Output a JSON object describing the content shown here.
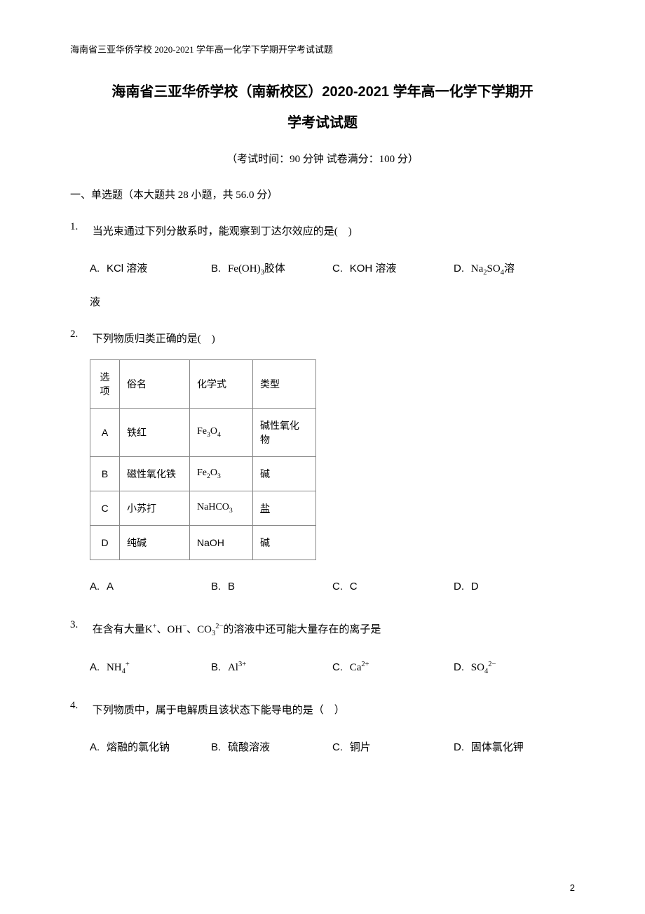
{
  "header_line": "海南省三亚华侨学校 2020-2021 学年高一化学下学期开学考试试题",
  "title_line1": "海南省三亚华侨学校（南新校区）2020-2021 学年高一化学下学期开",
  "title_line2": "学考试试题",
  "exam_info": "（考试时间：90 分钟  试卷满分：100 分）",
  "section1": "一、单选题（本大题共 28 小题，共 56.0 分）",
  "page_number": "2",
  "q1": {
    "num": "1.",
    "text": "当光束通过下列分散系时，能观察到丁达尔效应的是( )",
    "A_label": "A.",
    "A_text": "KCl 溶液",
    "B_label": "B.",
    "B_text_pre": "Fe(OH)",
    "B_sub": "3",
    "B_text_post": "胶体",
    "C_label": "C.",
    "C_text": "KOH 溶液",
    "D_label": "D.",
    "D_text_pre": "Na",
    "D_sub1": "2",
    "D_mid": "SO",
    "D_sub2": "4",
    "D_text_post": "溶",
    "extra": "液"
  },
  "q2": {
    "num": "2.",
    "text": "下列物质归类正确的是( )",
    "table": {
      "h0": "选项",
      "h1": "俗名",
      "h2": "化学式",
      "h3": "类型",
      "rA0": "A",
      "rA1": "铁红",
      "rA2_pre": "Fe",
      "rA2_s1": "3",
      "rA2_mid": "O",
      "rA2_s2": "4",
      "rA3": "碱性氧化物",
      "rB0": "B",
      "rB1": "磁性氧化铁",
      "rB2_pre": "Fe",
      "rB2_s1": "2",
      "rB2_mid": "O",
      "rB2_s2": "3",
      "rB3": "碱",
      "rC0": "C",
      "rC1": "小苏打",
      "rC2_pre": "NaHCO",
      "rC2_s1": "3",
      "rC3": "盐",
      "rD0": "D",
      "rD1": "纯碱",
      "rD2": "NaOH",
      "rD3": "碱"
    },
    "A_label": "A.",
    "A_text": "A",
    "B_label": "B.",
    "B_text": "B",
    "C_label": "C.",
    "C_text": "C",
    "D_label": "D.",
    "D_text": "D"
  },
  "q3": {
    "num": "3.",
    "text_pre": "在含有大量K",
    "sup1": "+",
    "mid1": "、OH",
    "sup2": "−",
    "mid2": "、CO",
    "sub1": "3",
    "sup3": "2−",
    "text_post": "的溶液中还可能大量存在的离子是",
    "A_label": "A.",
    "A_pre": "NH",
    "A_sub": "4",
    "A_sup": "+",
    "B_label": "B.",
    "B_pre": "Al",
    "B_sup": "3+",
    "C_label": "C.",
    "C_pre": "Ca",
    "C_sup": "2+",
    "D_label": "D.",
    "D_pre": "SO",
    "D_sub": "4",
    "D_sup": "2−"
  },
  "q4": {
    "num": "4.",
    "text": "下列物质中，属于电解质且该状态下能导电的是（ ）",
    "A_label": "A.",
    "A_text": "熔融的氯化钠",
    "B_label": "B.",
    "B_text": "硫酸溶液",
    "C_label": "C.",
    "C_text": "铜片",
    "D_label": "D.",
    "D_text": "固体氯化钾"
  }
}
